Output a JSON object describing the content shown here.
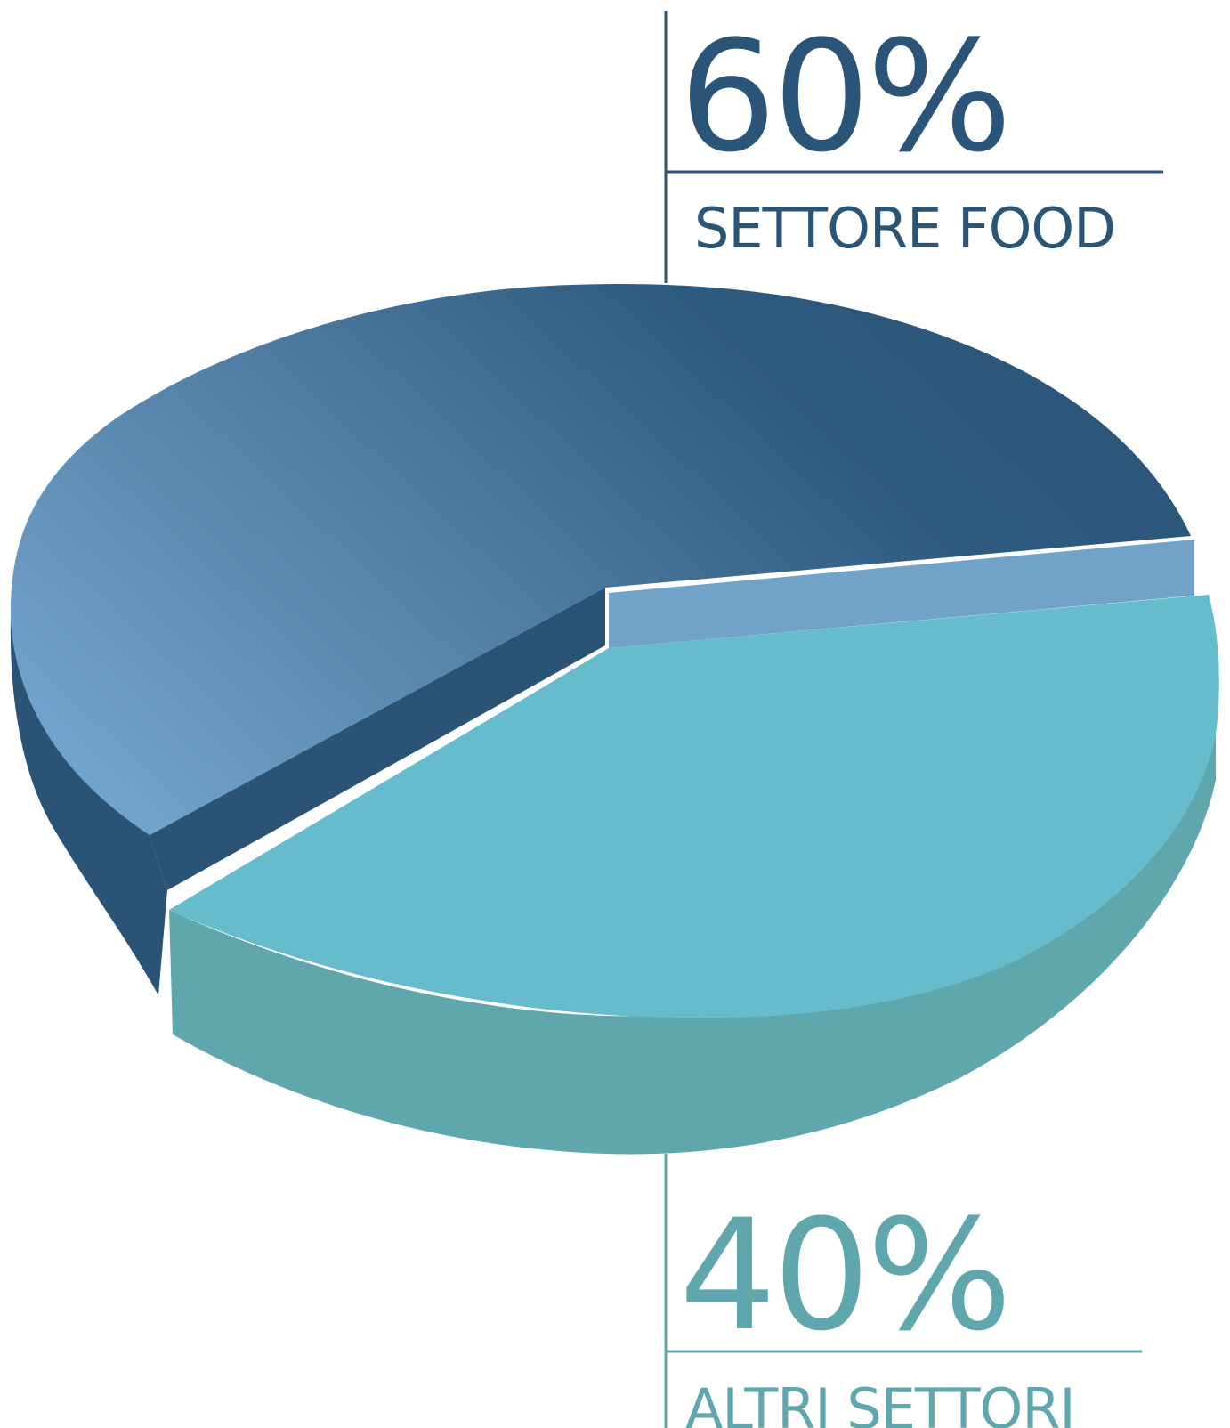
{
  "chart_data": {
    "type": "pie",
    "style": "3d-exploded",
    "slices": [
      {
        "label": "SETTORE FOOD",
        "value": 60,
        "value_label": "60%",
        "color": "#2b5578",
        "light_color": "#6e9fc7",
        "side_color": "#2a5376"
      },
      {
        "label": "ALTRI SETTORI",
        "value": 40,
        "value_label": "40%",
        "color": "#66bbcc",
        "side_color": "#5fa7ac",
        "inner_wall_color": "#71a3c8"
      }
    ],
    "legend": "none",
    "title": ""
  }
}
